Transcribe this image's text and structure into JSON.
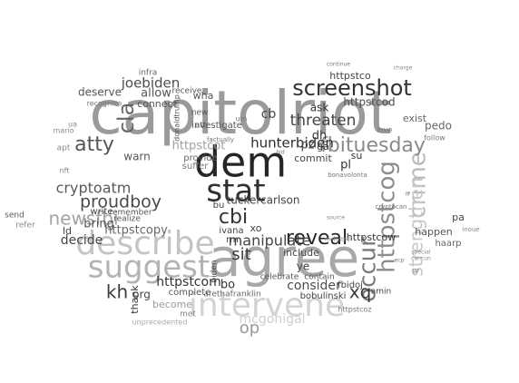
{
  "words": [
    {
      "text": "capitolriot",
      "weight": 1.0,
      "color": "#9a9a9a"
    },
    {
      "text": "agree",
      "weight": 0.98,
      "color": "#a8a8a8"
    },
    {
      "text": "dem",
      "weight": 0.82,
      "color": "#262626"
    },
    {
      "text": "intervene",
      "weight": 0.7,
      "color": "#d3d3d3"
    },
    {
      "text": "describe",
      "weight": 0.62,
      "color": "#c4c4c4"
    },
    {
      "text": "stat",
      "weight": 0.6,
      "color": "#2f2f2f"
    },
    {
      "text": "suggest",
      "weight": 0.58,
      "color": "#b3b3b3"
    },
    {
      "text": "httpstcog",
      "weight": 0.42,
      "color": "#8d8d8d"
    },
    {
      "text": "occur",
      "weight": 0.4,
      "color": "#7a7a7a"
    },
    {
      "text": "screenshot",
      "weight": 0.4,
      "color": "#333333"
    },
    {
      "text": "reveal",
      "weight": 0.38,
      "color": "#262626"
    },
    {
      "text": "cla",
      "weight": 0.36,
      "color": "#666666"
    },
    {
      "text": "crime",
      "weight": 0.36,
      "color": "#bbbbbb"
    },
    {
      "text": "fbituesday",
      "weight": 0.33,
      "color": "#8a8a8a"
    },
    {
      "text": "atty",
      "weight": 0.32,
      "color": "#555555"
    },
    {
      "text": "newsfbi",
      "weight": 0.31,
      "color": "#a3a3a3"
    },
    {
      "text": "proudboy",
      "weight": 0.29,
      "color": "#4a4a4a"
    },
    {
      "text": "kh",
      "weight": 0.3,
      "color": "#3c3c3c"
    },
    {
      "text": "xq",
      "weight": 0.3,
      "color": "#3a3a3a"
    },
    {
      "text": "cbi",
      "weight": 0.3,
      "color": "#333333"
    },
    {
      "text": "sit",
      "weight": 0.27,
      "color": "#3c3c3c"
    },
    {
      "text": "strengthen",
      "weight": 0.24,
      "color": "#c8c8c8"
    },
    {
      "text": "threaten",
      "weight": 0.24,
      "color": "#444444"
    },
    {
      "text": "cryptoatm",
      "weight": 0.24,
      "color": "#5a5a5a"
    },
    {
      "text": "manipulate",
      "weight": 0.23,
      "color": "#444444"
    },
    {
      "text": "op",
      "weight": 0.22,
      "color": "#999999"
    },
    {
      "text": "joebiden",
      "weight": 0.2,
      "color": "#4d4d4d"
    },
    {
      "text": "hunterbiden",
      "weight": 0.2,
      "color": "#2e2e2e"
    },
    {
      "text": "httpstcom",
      "weight": 0.2,
      "color": "#333333"
    },
    {
      "text": "mcgonigal",
      "weight": 0.2,
      "color": "#cfcfcf"
    },
    {
      "text": "allow",
      "weight": 0.18,
      "color": "#555555"
    },
    {
      "text": "consider",
      "weight": 0.18,
      "color": "#4d4d4d"
    },
    {
      "text": "decide",
      "weight": 0.18,
      "color": "#444444"
    },
    {
      "text": "bring",
      "weight": 0.18,
      "color": "#555555"
    },
    {
      "text": "httpstcopy",
      "weight": 0.17,
      "color": "#666666"
    },
    {
      "text": "tuckercarlson",
      "weight": 0.17,
      "color": "#444444"
    },
    {
      "text": "httpstcod",
      "weight": 0.17,
      "color": "#4d4d4d"
    },
    {
      "text": "httpstco",
      "weight": 0.16,
      "color": "#444444"
    },
    {
      "text": "connect",
      "weight": 0.16,
      "color": "#555555"
    },
    {
      "text": "deserve",
      "weight": 0.16,
      "color": "#555555"
    },
    {
      "text": "httpstcot",
      "weight": 0.16,
      "color": "#a0a0a0"
    },
    {
      "text": "httpstcow",
      "weight": 0.16,
      "color": "#333333"
    },
    {
      "text": "investigate",
      "weight": 0.15,
      "color": "#555555"
    },
    {
      "text": "thank",
      "weight": 0.15,
      "color": "#333333"
    },
    {
      "text": "become",
      "weight": 0.15,
      "color": "#999999"
    },
    {
      "text": "warn",
      "weight": 0.15,
      "color": "#555555"
    },
    {
      "text": "org",
      "weight": 0.15,
      "color": "#444444"
    },
    {
      "text": "bo",
      "weight": 0.15,
      "color": "#333333"
    },
    {
      "text": "include",
      "weight": 0.14,
      "color": "#444444"
    },
    {
      "text": "infra",
      "weight": 0.12,
      "color": "#666666"
    },
    {
      "text": "cb",
      "weight": 0.15,
      "color": "#444444"
    },
    {
      "text": "pz",
      "weight": 0.14,
      "color": "#444444"
    },
    {
      "text": "ask",
      "weight": 0.14,
      "color": "#333333"
    },
    {
      "text": "dh",
      "weight": 0.14,
      "color": "#333333"
    },
    {
      "text": "ga",
      "weight": 0.12,
      "color": "#333333"
    },
    {
      "text": "pl",
      "weight": 0.13,
      "color": "#333333"
    },
    {
      "text": "su",
      "weight": 0.12,
      "color": "#333333"
    },
    {
      "text": "ye",
      "weight": 0.14,
      "color": "#444444"
    },
    {
      "text": "commit",
      "weight": 0.13,
      "color": "#444444"
    },
    {
      "text": "ld",
      "weight": 0.14,
      "color": "#444444"
    },
    {
      "text": "fbidoj",
      "weight": 0.12,
      "color": "#444444"
    },
    {
      "text": "happen",
      "weight": 0.13,
      "color": "#555555"
    },
    {
      "text": "pedo",
      "weight": 0.13,
      "color": "#666666"
    },
    {
      "text": "exist",
      "weight": 0.12,
      "color": "#666666"
    },
    {
      "text": "haarp",
      "weight": 0.11,
      "color": "#666666"
    },
    {
      "text": "pa",
      "weight": 0.12,
      "color": "#444444"
    },
    {
      "text": "send",
      "weight": 0.11,
      "color": "#555555"
    },
    {
      "text": "refer",
      "weight": 0.11,
      "color": "#888888"
    },
    {
      "text": "write",
      "weight": 0.11,
      "color": "#444444"
    },
    {
      "text": "remember",
      "weight": 0.1,
      "color": "#555555"
    },
    {
      "text": "realize",
      "weight": 0.1,
      "color": "#555555"
    },
    {
      "text": "provide",
      "weight": 0.12,
      "color": "#666666"
    },
    {
      "text": "suffer",
      "weight": 0.11,
      "color": "#777777"
    },
    {
      "text": "wha",
      "weight": 0.12,
      "color": "#555555"
    },
    {
      "text": "receive",
      "weight": 0.1,
      "color": "#555555"
    },
    {
      "text": "new",
      "weight": 0.1,
      "color": "#555555"
    },
    {
      "text": "att",
      "weight": 0.1,
      "color": "#555555"
    },
    {
      "text": "ivana",
      "weight": 0.11,
      "color": "#444444"
    },
    {
      "text": "xo",
      "weight": 0.11,
      "color": "#444444"
    },
    {
      "text": "rm",
      "weight": 0.11,
      "color": "#444444"
    },
    {
      "text": "bu",
      "weight": 0.11,
      "color": "#444444"
    },
    {
      "text": "complete",
      "weight": 0.11,
      "color": "#555555"
    },
    {
      "text": "arethafranklin",
      "weight": 0.1,
      "color": "#666666"
    },
    {
      "text": "bobulinski",
      "weight": 0.11,
      "color": "#444444"
    },
    {
      "text": "contain",
      "weight": 0.1,
      "color": "#555555"
    },
    {
      "text": "celebrate",
      "weight": 0.1,
      "color": "#555555"
    },
    {
      "text": "amin",
      "weight": 0.1,
      "color": "#444444"
    },
    {
      "text": "met",
      "weight": 0.1,
      "color": "#888888"
    },
    {
      "text": "biden",
      "weight": 0.1,
      "color": "#444444"
    },
    {
      "text": "apt",
      "weight": 0.1,
      "color": "#888888"
    },
    {
      "text": "mario",
      "weight": 0.09,
      "color": "#888888"
    },
    {
      "text": "recognize",
      "weight": 0.09,
      "color": "#777777"
    },
    {
      "text": "donaldtrump",
      "weight": 0.09,
      "color": "#555555"
    },
    {
      "text": "factually",
      "weight": 0.08,
      "color": "#777777"
    },
    {
      "text": "bonavolonta",
      "weight": 0.08,
      "color": "#777777"
    },
    {
      "text": "follow",
      "weight": 0.08,
      "color": "#777777"
    },
    {
      "text": "inve",
      "weight": 0.08,
      "color": "#777777"
    },
    {
      "text": "ua",
      "weight": 0.09,
      "color": "#888888"
    },
    {
      "text": "httpstcoz",
      "weight": 0.08,
      "color": "#777777"
    },
    {
      "text": "cryptocan",
      "weight": 0.08,
      "color": "#777777"
    },
    {
      "text": "inoue",
      "weight": 0.08,
      "color": "#888888"
    },
    {
      "text": "nft",
      "weight": 0.08,
      "color": "#888888"
    },
    {
      "text": "continue",
      "weight": 0.07,
      "color": "#777777"
    },
    {
      "text": "unprecedented",
      "weight": 0.07,
      "color": "#aaaaaa"
    },
    {
      "text": "charge",
      "weight": 0.07,
      "color": "#888888"
    },
    {
      "text": "um",
      "weight": 0.08,
      "color": "#777777"
    },
    {
      "text": "bid",
      "weight": 0.07,
      "color": "#777777"
    },
    {
      "text": "gp",
      "weight": 0.07,
      "color": "#777777"
    },
    {
      "text": "ecp",
      "weight": 0.07,
      "color": "#777777"
    },
    {
      "text": "iv",
      "weight": 0.07,
      "color": "#777777"
    },
    {
      "text": "source",
      "weight": 0.07,
      "color": "#888888"
    },
    {
      "text": "molested",
      "weight": 0.07,
      "color": "#888888"
    },
    {
      "text": "special",
      "weight": 0.07,
      "color": "#888888"
    },
    {
      "text": "cancun",
      "weight": 0.07,
      "color": "#888888"
    }
  ]
}
